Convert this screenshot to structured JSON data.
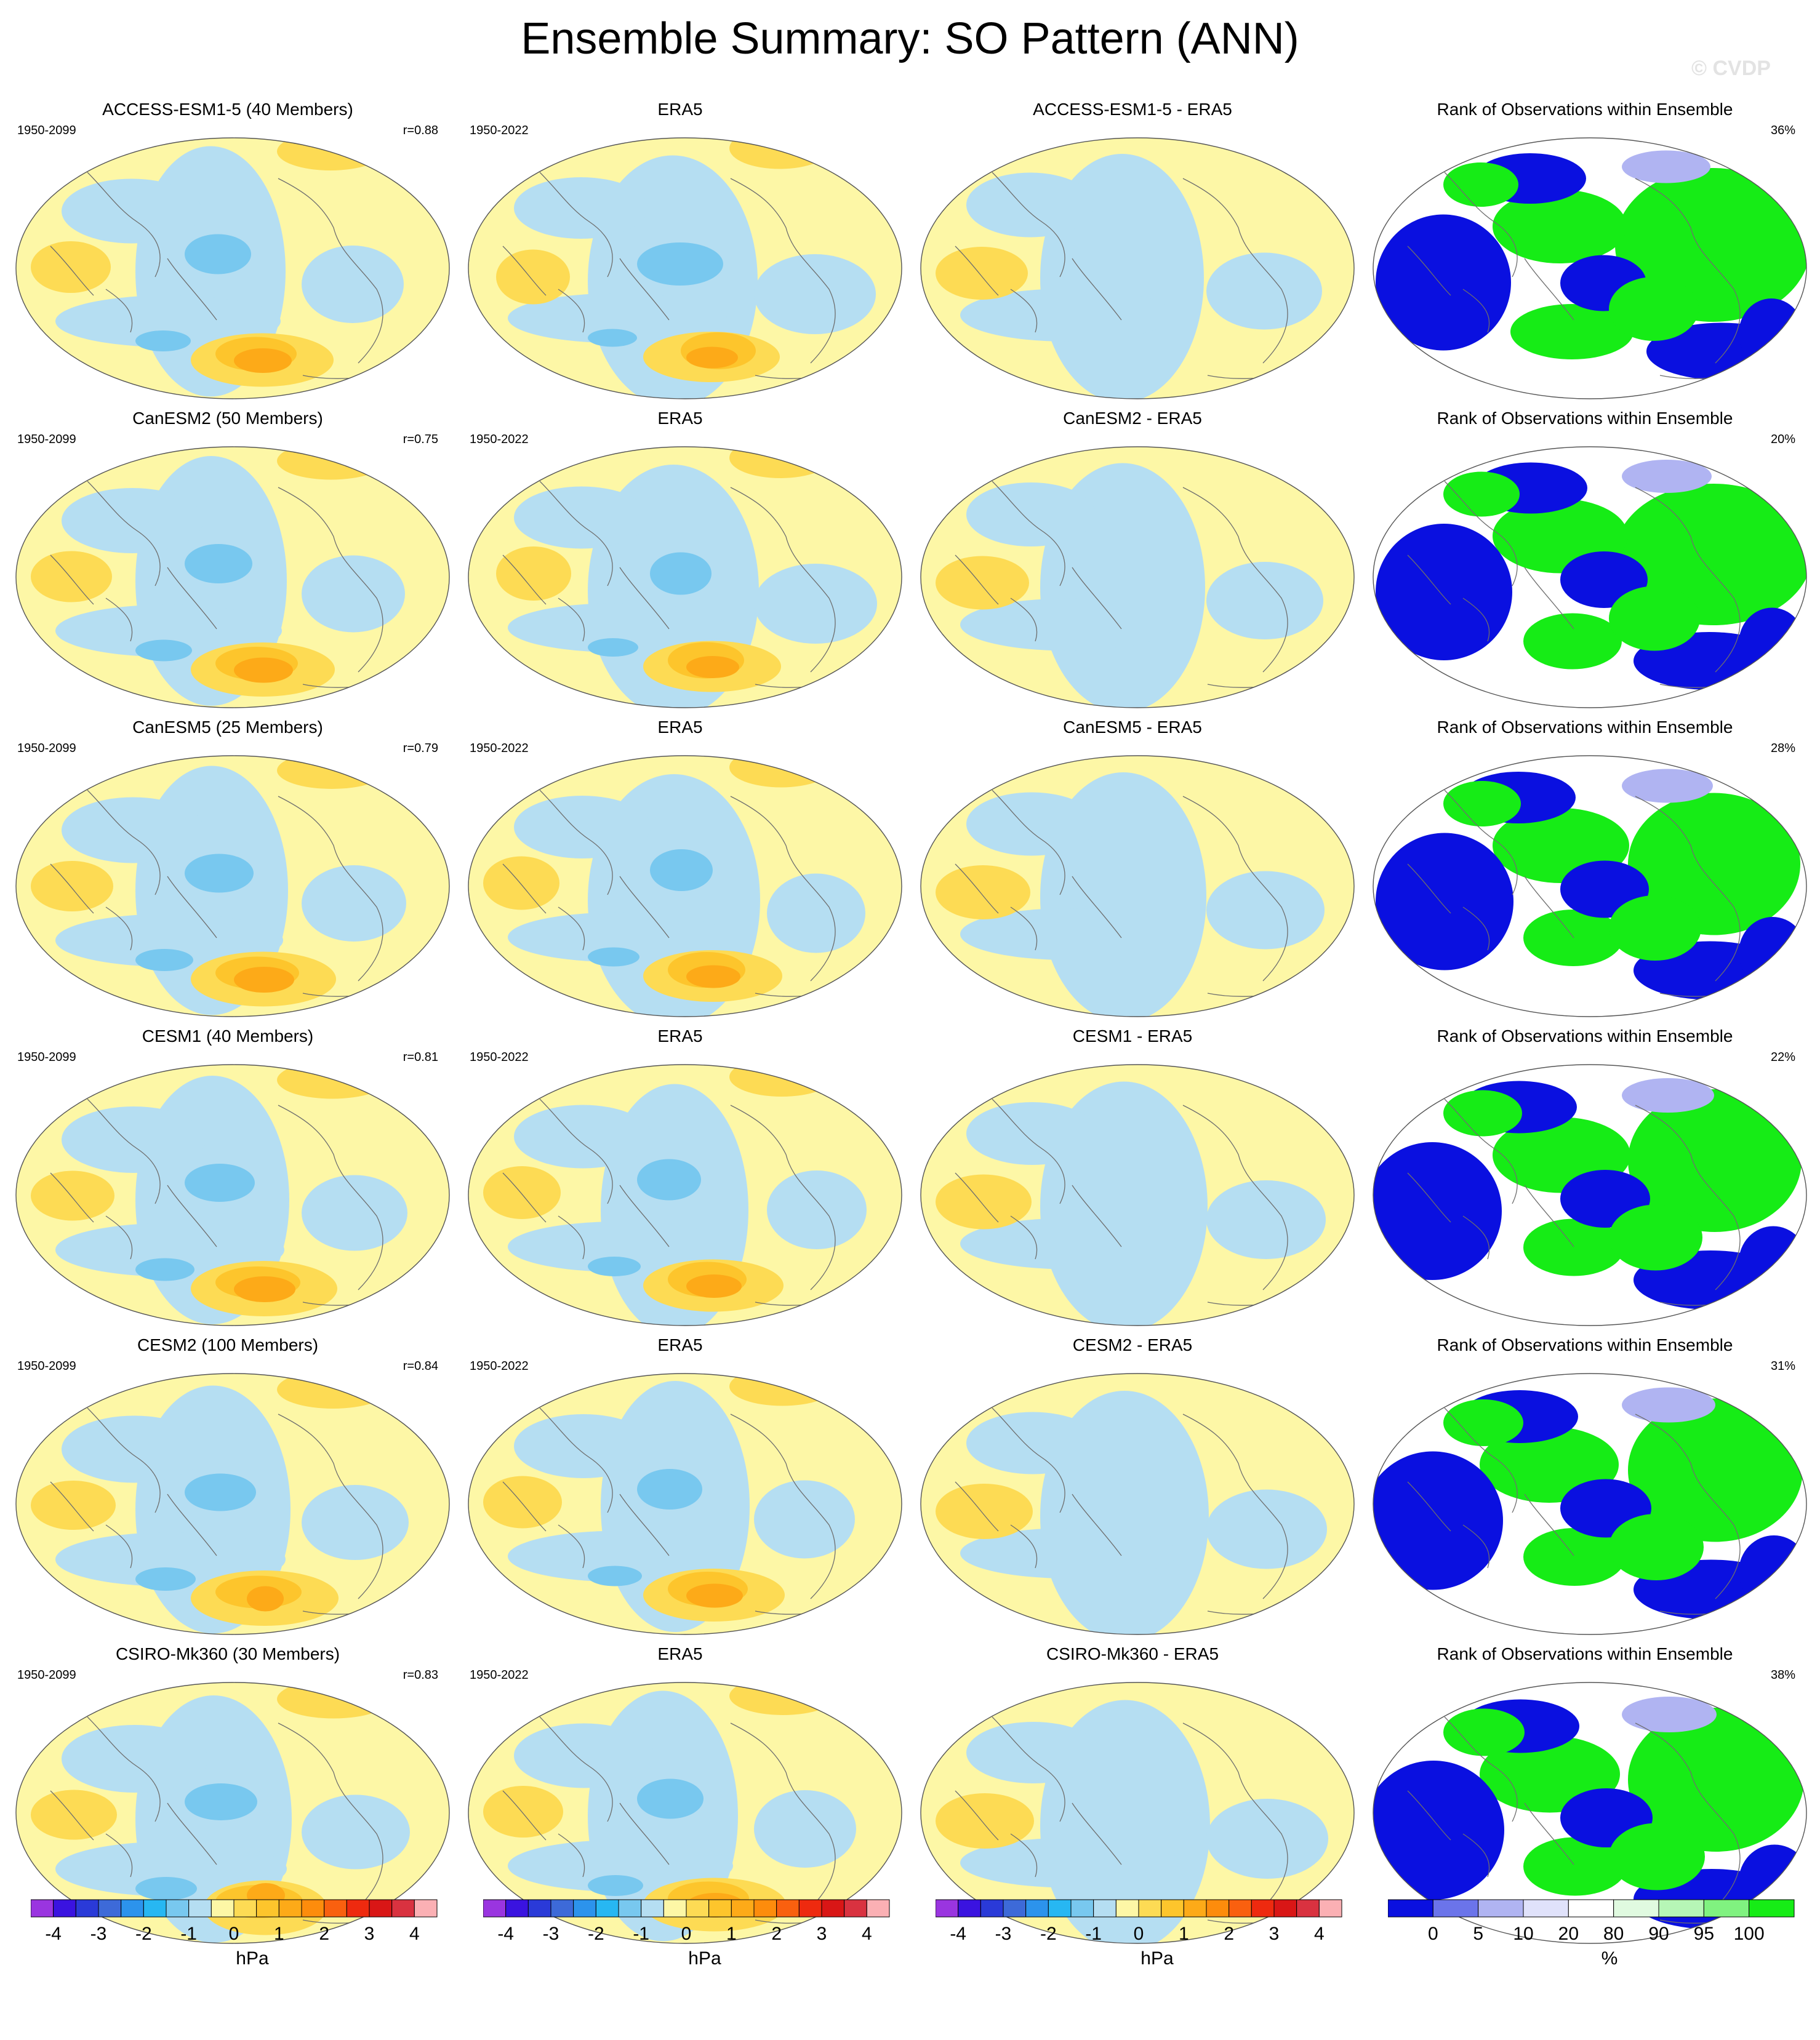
{
  "title": "Ensemble Summary: SO Pattern (ANN)",
  "watermark": "© CVDP",
  "model_years": "1950-2099",
  "obs_years": "1950-2022",
  "obs_title": "ERA5",
  "rank_title": "Rank of Observations within Ensemble",
  "rows": [
    {
      "model_title": "ACCESS-ESM1-5 (40 Members)",
      "corr": "r=0.88",
      "diff_title": "ACCESS-ESM1-5 - ERA5",
      "rank_pct": "36%"
    },
    {
      "model_title": "CanESM2 (50 Members)",
      "corr": "r=0.75",
      "diff_title": "CanESM2 - ERA5",
      "rank_pct": "20%"
    },
    {
      "model_title": "CanESM5 (25 Members)",
      "corr": "r=0.79",
      "diff_title": "CanESM5 - ERA5",
      "rank_pct": "28%"
    },
    {
      "model_title": "CESM1 (40 Members)",
      "corr": "r=0.81",
      "diff_title": "CESM1 - ERA5",
      "rank_pct": "22%"
    },
    {
      "model_title": "CESM2 (100 Members)",
      "corr": "r=0.84",
      "diff_title": "CESM2 - ERA5",
      "rank_pct": "31%"
    },
    {
      "model_title": "CSIRO-Mk360 (30 Members)",
      "corr": "r=0.83",
      "diff_title": "CSIRO-Mk360 - ERA5",
      "rank_pct": "38%"
    }
  ],
  "pattern_colorbar": {
    "unit": "hPa",
    "ticks": [
      "-4",
      "-3",
      "-2",
      "-1",
      "0",
      "1",
      "2",
      "3",
      "4"
    ],
    "colors": [
      "#9a35e0",
      "#3a13e0",
      "#2a3ad8",
      "#3d6ad8",
      "#2c93ec",
      "#27b7f2",
      "#78c8ef",
      "#b5def2",
      "#fdf7a6",
      "#fddb54",
      "#fdc52c",
      "#fdaa18",
      "#fd8c0c",
      "#f9600f",
      "#ee2a0f",
      "#d91616",
      "#d93240",
      "#fbb0b4"
    ]
  },
  "rank_colorbar": {
    "unit": "%",
    "ticks": [
      "0",
      "5",
      "10",
      "20",
      "80",
      "90",
      "95",
      "100"
    ],
    "colors": [
      "#0a10e0",
      "#6b74ea",
      "#b0b4f2",
      "#e0e2fb",
      "#ffffff",
      "#e0fae0",
      "#b6f6b6",
      "#80f280",
      "#16ec16"
    ]
  }
}
